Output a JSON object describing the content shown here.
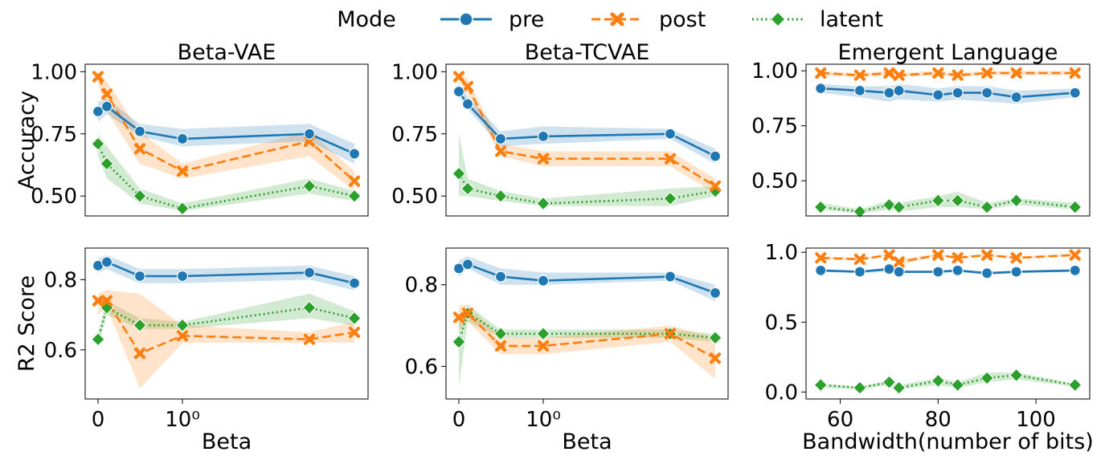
{
  "legend": {
    "title": "Mode",
    "entries": [
      "pre",
      "post",
      "latent"
    ],
    "placement": "top-center"
  },
  "colors": {
    "pre": "#1f77b4",
    "post": "#ff7f0e",
    "latent": "#2ca02c"
  },
  "chart_data": [
    {
      "type": "line",
      "title": "Beta-VAE",
      "xlabel": "",
      "ylabel": "Accuracy",
      "x_scale": "symlog",
      "x": [
        0,
        0.1,
        0.5,
        1,
        10,
        100
      ],
      "xticks": [],
      "ylim": [
        0.42,
        1.03
      ],
      "yticks": [
        0.5,
        0.75,
        1.0
      ],
      "ytick_labels": [
        "0.50",
        "0.75",
        "1.00"
      ],
      "series": [
        {
          "name": "pre",
          "values": [
            0.84,
            0.86,
            0.76,
            0.73,
            0.75,
            0.67
          ],
          "lower": [
            0.8,
            0.83,
            0.74,
            0.7,
            0.72,
            0.63
          ],
          "upper": [
            0.88,
            0.89,
            0.79,
            0.77,
            0.79,
            0.71
          ]
        },
        {
          "name": "post",
          "values": [
            0.98,
            0.91,
            0.69,
            0.6,
            0.72,
            0.56
          ],
          "lower": [
            0.95,
            0.84,
            0.63,
            0.57,
            0.66,
            0.52
          ],
          "upper": [
            1.0,
            0.96,
            0.76,
            0.63,
            0.76,
            0.6
          ]
        },
        {
          "name": "latent",
          "values": [
            0.71,
            0.63,
            0.5,
            0.45,
            0.54,
            0.5
          ],
          "lower": [
            0.66,
            0.57,
            0.47,
            0.44,
            0.51,
            0.48
          ],
          "upper": [
            0.75,
            0.7,
            0.53,
            0.47,
            0.57,
            0.52
          ]
        }
      ]
    },
    {
      "type": "line",
      "title": "Beta-TCVAE",
      "xlabel": "",
      "ylabel": "",
      "x_scale": "symlog",
      "x": [
        0,
        0.1,
        0.5,
        1,
        10,
        100
      ],
      "xticks": [],
      "ylim": [
        0.42,
        1.03
      ],
      "yticks": [
        0.5,
        0.75,
        1.0
      ],
      "ytick_labels": [
        "0.50",
        "0.75",
        "1.00"
      ],
      "series": [
        {
          "name": "pre",
          "values": [
            0.92,
            0.87,
            0.73,
            0.74,
            0.75,
            0.66
          ],
          "lower": [
            0.9,
            0.85,
            0.7,
            0.71,
            0.73,
            0.63
          ],
          "upper": [
            0.95,
            0.9,
            0.76,
            0.78,
            0.77,
            0.69
          ]
        },
        {
          "name": "post",
          "values": [
            0.98,
            0.94,
            0.68,
            0.65,
            0.65,
            0.54
          ],
          "lower": [
            0.96,
            0.91,
            0.66,
            0.62,
            0.62,
            0.51
          ],
          "upper": [
            1.0,
            0.97,
            0.71,
            0.68,
            0.68,
            0.57
          ]
        },
        {
          "name": "latent",
          "values": [
            0.59,
            0.53,
            0.5,
            0.47,
            0.49,
            0.52
          ],
          "lower": [
            0.5,
            0.5,
            0.48,
            0.46,
            0.46,
            0.5
          ],
          "upper": [
            0.75,
            0.57,
            0.52,
            0.49,
            0.53,
            0.54
          ]
        }
      ]
    },
    {
      "type": "line",
      "title": "Emergent Language",
      "xlabel": "",
      "ylabel": "",
      "x_scale": "linear",
      "x": [
        56,
        64,
        70,
        72,
        80,
        84,
        90,
        96,
        108
      ],
      "xlim": [
        53,
        111
      ],
      "xticks": [],
      "ylim": [
        0.34,
        1.03
      ],
      "yticks": [
        0.5,
        0.75,
        1.0
      ],
      "ytick_labels": [
        "0.50",
        "0.75",
        "1.00"
      ],
      "series": [
        {
          "name": "pre",
          "values": [
            0.92,
            0.91,
            0.9,
            0.91,
            0.89,
            0.9,
            0.9,
            0.88,
            0.9
          ],
          "lower": [
            0.9,
            0.88,
            0.86,
            0.87,
            0.86,
            0.87,
            0.86,
            0.85,
            0.88
          ],
          "upper": [
            0.94,
            0.93,
            0.93,
            0.94,
            0.92,
            0.93,
            0.93,
            0.91,
            0.92
          ]
        },
        {
          "name": "post",
          "values": [
            0.99,
            0.98,
            0.99,
            0.98,
            0.99,
            0.98,
            0.99,
            0.99,
            0.99
          ],
          "lower": [
            0.98,
            0.97,
            0.98,
            0.97,
            0.98,
            0.97,
            0.98,
            0.98,
            0.98
          ],
          "upper": [
            1.0,
            0.99,
            1.0,
            0.99,
            1.0,
            0.99,
            1.0,
            1.0,
            1.0
          ]
        },
        {
          "name": "latent",
          "values": [
            0.38,
            0.36,
            0.39,
            0.38,
            0.41,
            0.41,
            0.38,
            0.41,
            0.38
          ],
          "lower": [
            0.37,
            0.35,
            0.37,
            0.36,
            0.38,
            0.38,
            0.37,
            0.39,
            0.37
          ],
          "upper": [
            0.4,
            0.37,
            0.41,
            0.4,
            0.43,
            0.45,
            0.4,
            0.42,
            0.4
          ]
        }
      ]
    },
    {
      "type": "line",
      "title": "",
      "xlabel": "Beta",
      "ylabel": "R2 Score",
      "x_scale": "symlog",
      "x": [
        0,
        0.1,
        0.5,
        1,
        10,
        100
      ],
      "xticks": [
        0,
        1
      ],
      "xtick_labels": [
        "0",
        "10⁰"
      ],
      "ylim": [
        0.46,
        0.89
      ],
      "yticks": [
        0.6,
        0.8
      ],
      "ytick_labels": [
        "0.6",
        "0.8"
      ],
      "series": [
        {
          "name": "pre",
          "values": [
            0.84,
            0.85,
            0.81,
            0.81,
            0.82,
            0.79
          ],
          "lower": [
            0.82,
            0.83,
            0.79,
            0.79,
            0.8,
            0.77
          ],
          "upper": [
            0.86,
            0.87,
            0.83,
            0.83,
            0.84,
            0.81
          ]
        },
        {
          "name": "post",
          "values": [
            0.74,
            0.74,
            0.59,
            0.64,
            0.63,
            0.65
          ],
          "lower": [
            0.7,
            0.72,
            0.49,
            0.62,
            0.62,
            0.62
          ],
          "upper": [
            0.76,
            0.77,
            0.76,
            0.67,
            0.65,
            0.68
          ]
        },
        {
          "name": "latent",
          "values": [
            0.63,
            0.72,
            0.67,
            0.67,
            0.72,
            0.69
          ],
          "lower": [
            0.61,
            0.7,
            0.66,
            0.66,
            0.69,
            0.67
          ],
          "upper": [
            0.65,
            0.74,
            0.69,
            0.68,
            0.76,
            0.71
          ]
        }
      ]
    },
    {
      "type": "line",
      "title": "",
      "xlabel": "Beta",
      "ylabel": "",
      "x_scale": "symlog",
      "x": [
        0,
        0.1,
        0.5,
        1,
        10,
        100
      ],
      "xticks": [
        0,
        1
      ],
      "xtick_labels": [
        "0",
        "10⁰"
      ],
      "ylim": [
        0.52,
        0.89
      ],
      "yticks": [
        0.6,
        0.8
      ],
      "ytick_labels": [
        "0.6",
        "0.8"
      ],
      "series": [
        {
          "name": "pre",
          "values": [
            0.84,
            0.85,
            0.82,
            0.81,
            0.82,
            0.78
          ],
          "lower": [
            0.82,
            0.84,
            0.8,
            0.8,
            0.81,
            0.76
          ],
          "upper": [
            0.86,
            0.87,
            0.84,
            0.83,
            0.83,
            0.8
          ]
        },
        {
          "name": "post",
          "values": [
            0.72,
            0.73,
            0.65,
            0.65,
            0.68,
            0.62
          ],
          "lower": [
            0.69,
            0.71,
            0.63,
            0.63,
            0.66,
            0.57
          ],
          "upper": [
            0.75,
            0.75,
            0.67,
            0.67,
            0.7,
            0.67
          ]
        },
        {
          "name": "latent",
          "values": [
            0.66,
            0.73,
            0.68,
            0.68,
            0.68,
            0.67
          ],
          "lower": [
            0.55,
            0.71,
            0.67,
            0.67,
            0.67,
            0.66
          ],
          "upper": [
            0.71,
            0.75,
            0.69,
            0.69,
            0.69,
            0.68
          ]
        }
      ]
    },
    {
      "type": "line",
      "title": "",
      "xlabel": "Bandwidth(number of bits)",
      "ylabel": "",
      "x_scale": "linear",
      "x": [
        56,
        64,
        70,
        72,
        80,
        84,
        90,
        96,
        108
      ],
      "xlim": [
        53,
        111
      ],
      "xticks": [
        60,
        80,
        100
      ],
      "xtick_labels": [
        "60",
        "80",
        "100"
      ],
      "ylim": [
        -0.05,
        1.03
      ],
      "yticks": [
        0.0,
        0.5,
        1.0
      ],
      "ytick_labels": [
        "0.0",
        "0.5",
        "1.0"
      ],
      "series": [
        {
          "name": "pre",
          "values": [
            0.87,
            0.86,
            0.88,
            0.86,
            0.86,
            0.87,
            0.85,
            0.86,
            0.87
          ],
          "lower": [
            0.86,
            0.85,
            0.86,
            0.85,
            0.85,
            0.86,
            0.84,
            0.85,
            0.86
          ],
          "upper": [
            0.88,
            0.87,
            0.89,
            0.87,
            0.87,
            0.88,
            0.86,
            0.87,
            0.88
          ]
        },
        {
          "name": "post",
          "values": [
            0.96,
            0.95,
            0.98,
            0.93,
            0.98,
            0.96,
            0.98,
            0.96,
            0.98
          ],
          "lower": [
            0.95,
            0.94,
            0.97,
            0.91,
            0.97,
            0.95,
            0.97,
            0.95,
            0.97
          ],
          "upper": [
            0.97,
            0.96,
            0.99,
            0.95,
            0.99,
            0.97,
            0.99,
            0.97,
            0.99
          ]
        },
        {
          "name": "latent",
          "values": [
            0.05,
            0.03,
            0.07,
            0.03,
            0.08,
            0.05,
            0.1,
            0.12,
            0.05
          ],
          "lower": [
            0.03,
            0.02,
            0.05,
            0.02,
            0.05,
            0.03,
            0.07,
            0.09,
            0.04
          ],
          "upper": [
            0.06,
            0.04,
            0.08,
            0.05,
            0.1,
            0.07,
            0.14,
            0.14,
            0.06
          ]
        }
      ]
    }
  ]
}
